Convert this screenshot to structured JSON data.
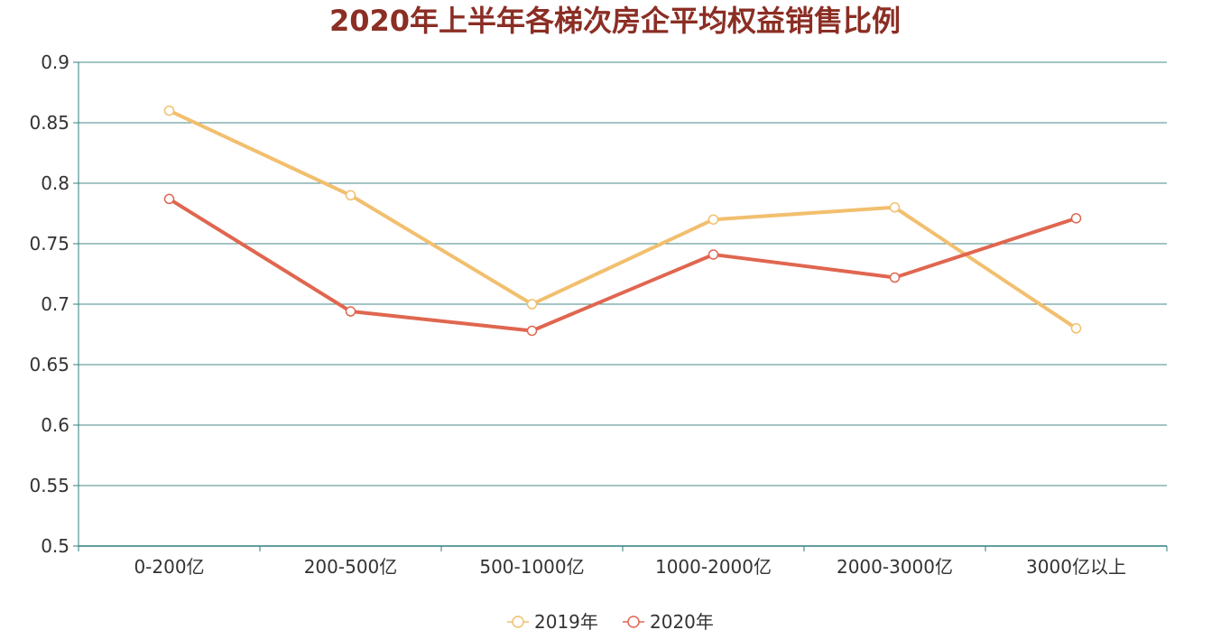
{
  "colors": {
    "title": "#8b2e24",
    "grid": "#4a8a8a",
    "axis": "#2f7f7f"
  },
  "chart_data": {
    "type": "line",
    "title": "2020年上半年各梯次房企平均权益销售比例",
    "xlabel": "",
    "ylabel": "",
    "categories": [
      "0-200亿",
      "200-500亿",
      "500-1000亿",
      "1000-2000亿",
      "2000-3000亿",
      "3000亿以上"
    ],
    "ylim": [
      0.5,
      0.9
    ],
    "yticks": [
      "0.5",
      "0.55",
      "0.6",
      "0.65",
      "0.7",
      "0.75",
      "0.8",
      "0.85",
      "0.9"
    ],
    "grid": true,
    "legend_position": "bottom-center",
    "series": [
      {
        "name": "2019年",
        "color": "#f2bf6e",
        "values": [
          0.86,
          0.79,
          0.7,
          0.77,
          0.78,
          0.68
        ]
      },
      {
        "name": "2020年",
        "color": "#e06650",
        "values": [
          0.787,
          0.694,
          0.678,
          0.741,
          0.722,
          0.771
        ]
      }
    ]
  }
}
